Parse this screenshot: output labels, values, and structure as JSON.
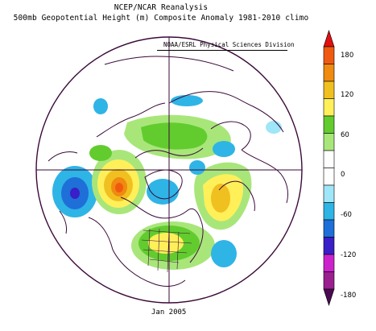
{
  "header": {
    "line1": "NCEP/NCAR Reanalysis",
    "line2": "500mb Geopotential Height (m) Composite Anomaly 1981-2010 climo",
    "credit": "NOAA/ESRL Physical Sciences Division"
  },
  "footer": {
    "date": "Jan 2005"
  },
  "colorbar": {
    "ticks": [
      "180",
      "120",
      "60",
      "0",
      "-60",
      "-120",
      "-180"
    ],
    "bins": [
      {
        "color": "#9a1f8f"
      },
      {
        "color": "#cc22cc"
      },
      {
        "color": "#3a1ec8"
      },
      {
        "color": "#1e6fd8"
      },
      {
        "color": "#2fb4e6"
      },
      {
        "color": "#9fe6f8"
      },
      {
        "color": "#ffffff"
      },
      {
        "color": "#ffffff"
      },
      {
        "color": "#a8e67a"
      },
      {
        "color": "#62cc2e"
      },
      {
        "color": "#fff05a"
      },
      {
        "color": "#f0c020"
      },
      {
        "color": "#f08a10"
      },
      {
        "color": "#f05a10"
      }
    ],
    "top_cap": "#e01010",
    "bottom_cap": "#4a0a52"
  },
  "map": {
    "projection": "north-polar-stereographic",
    "boundary_color": "#3a0a3a"
  }
}
